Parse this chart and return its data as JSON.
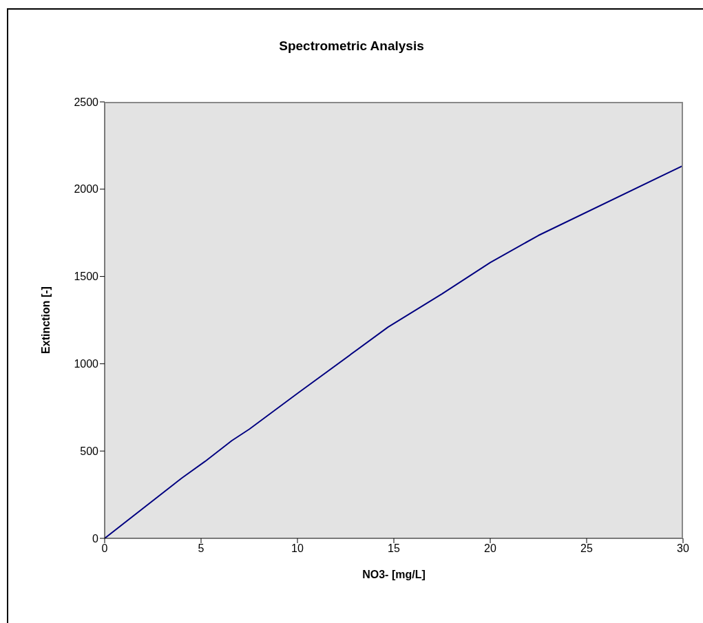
{
  "chart_data": {
    "type": "line",
    "title": "Spectrometric Analysis",
    "xlabel": "NO3- [mg/L]",
    "ylabel": "Extinction [-]",
    "x": [
      0,
      4,
      5.2,
      6.6,
      7.5,
      10,
      14.7,
      17.5,
      20,
      22.5,
      30
    ],
    "series": [
      {
        "color": "#000080",
        "values": [
          0,
          345,
          440,
          560,
          625,
          830,
          1210,
          1400,
          1580,
          1735,
          2135
        ]
      }
    ],
    "xlim": [
      0,
      30
    ],
    "xticks": [
      0,
      5,
      10,
      15,
      20,
      25,
      30
    ],
    "ylim": [
      0,
      2500
    ],
    "yticks": [
      0,
      500,
      1000,
      1500,
      2000,
      2500
    ],
    "grid": false,
    "legend": false,
    "marker": "none",
    "line_style": "solid"
  }
}
